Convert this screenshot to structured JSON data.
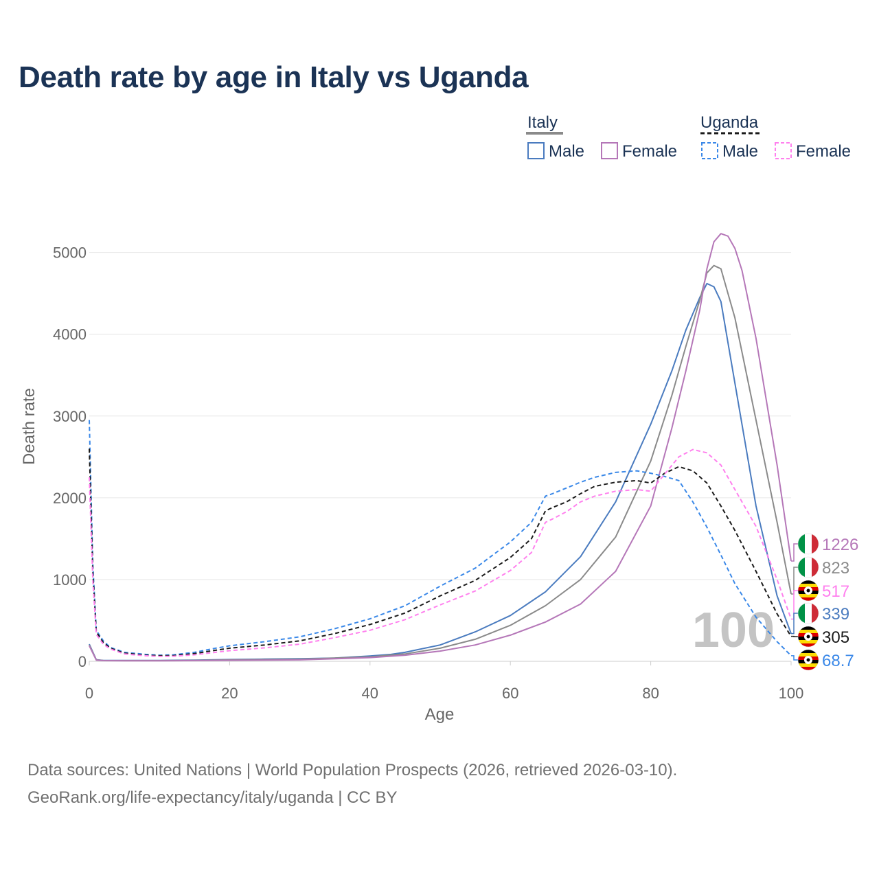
{
  "title": "Death rate by age in Italy vs Uganda",
  "legend": {
    "groups": [
      {
        "name": "Italy",
        "style": "solid",
        "color": "#8a8a8a"
      },
      {
        "name": "Uganda",
        "style": "dashed",
        "color": "#1a1a1a"
      }
    ],
    "items": [
      {
        "label": "Male",
        "style": "solid",
        "color": "#4a7bbf"
      },
      {
        "label": "Female",
        "style": "solid",
        "color": "#b577b8"
      },
      {
        "label": "Male",
        "style": "dashed",
        "color": "#3a88e8"
      },
      {
        "label": "Female",
        "style": "dashed",
        "color": "#ff80ee"
      }
    ]
  },
  "year_watermark": "100",
  "end_labels": [
    {
      "value": "1226",
      "flag": "italy",
      "color": "#b577b8"
    },
    {
      "value": "823",
      "flag": "italy",
      "color": "#8a8a8a"
    },
    {
      "value": "517",
      "flag": "uganda",
      "color": "#ff80ee"
    },
    {
      "value": "339",
      "flag": "italy",
      "color": "#4a7bbf"
    },
    {
      "value": "305",
      "flag": "uganda",
      "color": "#1a1a1a"
    },
    {
      "value": "68.7",
      "flag": "uganda",
      "color": "#3a88e8"
    }
  ],
  "sources": [
    "Data sources: United Nations | World Population Prospects (2026, retrieved 2026-03-10).",
    "GeoRank.org/life-expectancy/italy/uganda | CC BY"
  ],
  "chart_data": {
    "type": "line",
    "xlabel": "Age",
    "ylabel": "Death rate",
    "xlim": [
      0,
      100
    ],
    "ylim": [
      0,
      5400
    ],
    "xticks": [
      0,
      20,
      40,
      60,
      80,
      100
    ],
    "yticks": [
      0,
      1000,
      2000,
      3000,
      4000,
      5000
    ],
    "grid": true,
    "series": [
      {
        "name": "Italy Male",
        "color": "#4a7bbf",
        "dashed": false,
        "x": [
          0,
          1,
          2,
          5,
          10,
          15,
          20,
          25,
          30,
          35,
          40,
          43,
          45,
          50,
          55,
          60,
          65,
          70,
          75,
          80,
          83,
          85,
          87,
          88,
          89,
          90,
          92,
          95,
          98,
          100
        ],
        "y": [
          210,
          20,
          10,
          10,
          10,
          15,
          22,
          27,
          32,
          40,
          65,
          85,
          110,
          200,
          360,
          560,
          850,
          1280,
          1950,
          2900,
          3550,
          4050,
          4450,
          4620,
          4580,
          4400,
          3400,
          1900,
          800,
          339
        ]
      },
      {
        "name": "Italy Total",
        "color": "#8a8a8a",
        "dashed": false,
        "x": [
          0,
          1,
          2,
          5,
          10,
          15,
          20,
          30,
          40,
          45,
          50,
          55,
          60,
          65,
          70,
          75,
          80,
          83,
          85,
          87,
          88,
          89,
          90,
          92,
          95,
          98,
          100
        ],
        "y": [
          200,
          18,
          9,
          8,
          8,
          12,
          18,
          25,
          55,
          90,
          160,
          270,
          440,
          680,
          1000,
          1520,
          2450,
          3250,
          3850,
          4420,
          4750,
          4840,
          4800,
          4200,
          2950,
          1700,
          823
        ]
      },
      {
        "name": "Italy Female",
        "color": "#b577b8",
        "dashed": false,
        "x": [
          0,
          1,
          2,
          5,
          10,
          15,
          20,
          30,
          40,
          45,
          50,
          55,
          60,
          65,
          70,
          75,
          80,
          83,
          85,
          87,
          88,
          89,
          90,
          91,
          92,
          93,
          95,
          98,
          100
        ],
        "y": [
          190,
          15,
          8,
          7,
          6,
          9,
          13,
          18,
          45,
          75,
          125,
          200,
          320,
          480,
          700,
          1100,
          1900,
          2850,
          3550,
          4300,
          4800,
          5130,
          5230,
          5200,
          5050,
          4780,
          3950,
          2400,
          1226
        ]
      },
      {
        "name": "Uganda Male",
        "color": "#3a88e8",
        "dashed": true,
        "x": [
          0,
          0.5,
          1,
          2,
          3,
          5,
          8,
          10,
          12,
          15,
          18,
          20,
          25,
          30,
          35,
          40,
          45,
          50,
          55,
          60,
          63,
          65,
          66,
          68,
          70,
          72,
          75,
          78,
          80,
          82,
          84,
          86,
          88,
          90,
          92,
          95,
          98,
          100
        ],
        "y": [
          2950,
          1200,
          380,
          250,
          170,
          110,
          85,
          75,
          80,
          110,
          160,
          190,
          240,
          300,
          400,
          520,
          680,
          920,
          1140,
          1460,
          1700,
          2020,
          2050,
          2120,
          2190,
          2250,
          2310,
          2330,
          2300,
          2260,
          2210,
          1950,
          1640,
          1300,
          950,
          540,
          240,
          68.7
        ]
      },
      {
        "name": "Uganda Total",
        "color": "#1a1a1a",
        "dashed": true,
        "x": [
          0,
          0.5,
          1,
          2,
          3,
          5,
          8,
          10,
          12,
          15,
          18,
          20,
          25,
          30,
          35,
          40,
          45,
          50,
          55,
          60,
          63,
          65,
          66,
          68,
          70,
          72,
          75,
          78,
          80,
          82,
          84,
          86,
          88,
          90,
          92,
          95,
          98,
          100
        ],
        "y": [
          2600,
          1100,
          360,
          230,
          160,
          100,
          75,
          68,
          70,
          95,
          135,
          160,
          200,
          250,
          340,
          450,
          590,
          800,
          990,
          1270,
          1500,
          1840,
          1880,
          1950,
          2050,
          2140,
          2190,
          2210,
          2180,
          2300,
          2380,
          2330,
          2180,
          1900,
          1600,
          1100,
          580,
          305
        ]
      },
      {
        "name": "Uganda Female",
        "color": "#ff80ee",
        "dashed": true,
        "x": [
          0,
          0.5,
          1,
          2,
          3,
          5,
          8,
          10,
          12,
          15,
          18,
          20,
          25,
          30,
          35,
          40,
          45,
          50,
          55,
          60,
          63,
          65,
          66,
          68,
          70,
          72,
          75,
          78,
          80,
          82,
          84,
          86,
          88,
          90,
          92,
          95,
          98,
          100
        ],
        "y": [
          2250,
          1000,
          330,
          210,
          150,
          90,
          68,
          60,
          62,
          80,
          110,
          130,
          165,
          210,
          290,
          380,
          510,
          690,
          860,
          1110,
          1330,
          1700,
          1740,
          1830,
          1950,
          2020,
          2080,
          2100,
          2080,
          2290,
          2500,
          2590,
          2550,
          2400,
          2100,
          1650,
          1000,
          517
        ]
      }
    ]
  }
}
